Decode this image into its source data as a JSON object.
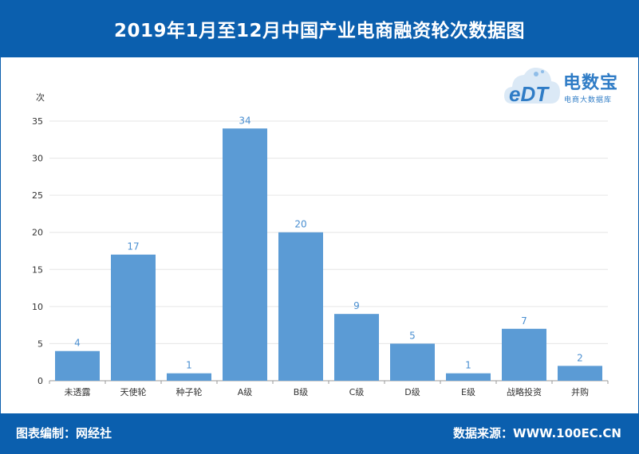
{
  "header": {
    "title": "2019年1月至12月中国产业电商融资轮次数据图"
  },
  "footer": {
    "left": "图表编制：网经社",
    "right": "数据来源：WWW.100EC.CN"
  },
  "logo": {
    "name": "电数宝",
    "sub": "电商大数据库",
    "badge": "eDT"
  },
  "colors": {
    "header": "#0b5fae",
    "bar": "#5b9bd5",
    "label": "#4a8fd1"
  },
  "chart_data": {
    "type": "bar",
    "title": "2019年1月至12月中国产业电商融资轮次数据图",
    "ylabel": "次",
    "xlabel": "",
    "ylim": [
      0,
      35
    ],
    "yticks": [
      0,
      5,
      10,
      15,
      20,
      25,
      30,
      35
    ],
    "grid": true,
    "categories": [
      "未透露",
      "天使轮",
      "种子轮",
      "A级",
      "B级",
      "C级",
      "D级",
      "E级",
      "战略投资",
      "并购"
    ],
    "values": [
      4,
      17,
      1,
      34,
      20,
      9,
      5,
      1,
      7,
      2
    ]
  }
}
